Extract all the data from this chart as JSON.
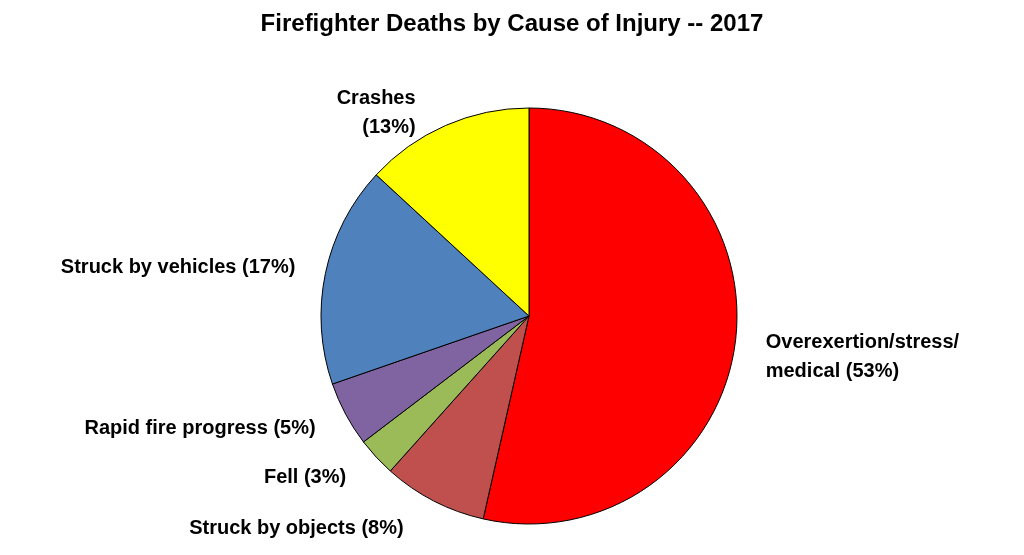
{
  "chart_data": {
    "type": "pie",
    "title": "Firefighter Deaths by Cause of Injury -- 2017",
    "categories": [
      "Overexertion/stress/medical",
      "Struck by objects",
      "Fell",
      "Rapid fire progress",
      "Struck by vehicles",
      "Crashes"
    ],
    "values": [
      53,
      8,
      3,
      5,
      17,
      13
    ],
    "value_labels": [
      "(53%)",
      "(8%)",
      "(3%)",
      "(5%)",
      "(17%)",
      "(13%)"
    ],
    "colors": [
      "#ff0000",
      "#c0504d",
      "#9bbb59",
      "#8064a2",
      "#4f81bd",
      "#ffff00"
    ]
  }
}
